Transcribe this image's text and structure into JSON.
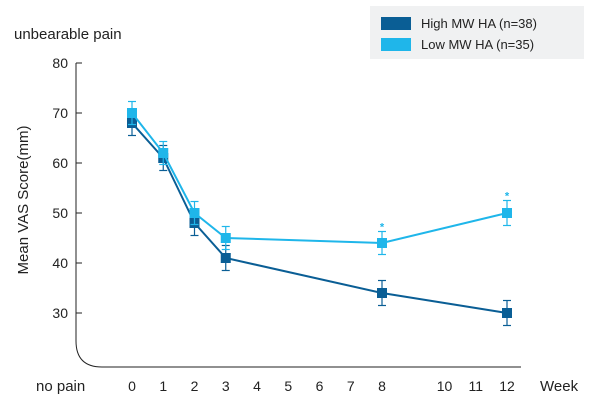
{
  "colors": {
    "high": "#0a5e95",
    "low": "#1fb6ea",
    "axis": "#222222",
    "legend_bg": "#f0f1f2"
  },
  "annotations": {
    "top_label": "unbearable pain",
    "bottom_label": "no pain",
    "significance_marker": "*"
  },
  "chart_data": {
    "type": "line",
    "title": "",
    "xlabel": "Week",
    "ylabel": "Mean VAS Score(mm)",
    "ylim": [
      20,
      80
    ],
    "yticks": [
      30,
      40,
      50,
      60,
      70,
      80
    ],
    "xticks": [
      0,
      1,
      2,
      3,
      4,
      5,
      6,
      7,
      8,
      10,
      11,
      12
    ],
    "grid": false,
    "legend_position": "top-right",
    "series": [
      {
        "name": "High MW HA (n=38)",
        "color_key": "high",
        "x": [
          0,
          1,
          2,
          3,
          8,
          12
        ],
        "y": [
          68,
          61,
          48,
          41,
          34,
          30
        ],
        "err": [
          2.5,
          2.5,
          2.5,
          2.5,
          2.5,
          2.5
        ]
      },
      {
        "name": "Low MW HA (n=35)",
        "color_key": "low",
        "x": [
          0,
          1,
          2,
          3,
          8,
          12
        ],
        "y": [
          70,
          62,
          50,
          45,
          44,
          50
        ],
        "err": [
          2.3,
          2.3,
          2.3,
          2.3,
          2.3,
          2.5
        ],
        "significant_at": [
          8,
          12
        ]
      }
    ]
  }
}
